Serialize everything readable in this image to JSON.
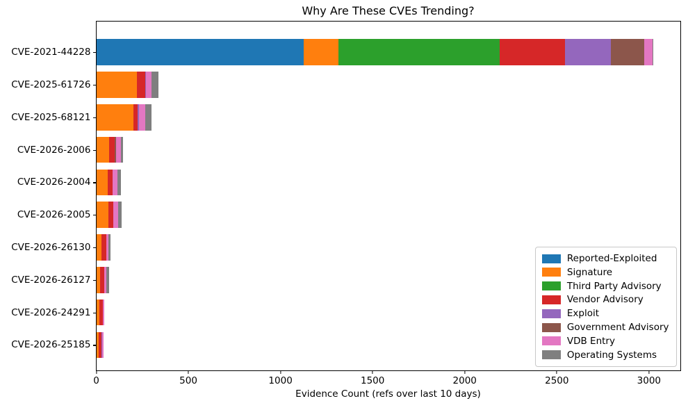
{
  "chart_data": {
    "type": "bar",
    "orientation": "horizontal",
    "title": "Why Are These CVEs Trending?",
    "xlabel": "Evidence Count (refs over last 10 days)",
    "ylabel": "",
    "xlim": [
      0,
      3176
    ],
    "xticks": [
      0,
      500,
      1000,
      1500,
      2000,
      2500,
      3000
    ],
    "grid": false,
    "legend_position": "lower right",
    "categories": [
      "CVE-2021-44228",
      "CVE-2025-61726",
      "CVE-2025-68121",
      "CVE-2026-2006",
      "CVE-2026-2004",
      "CVE-2026-2005",
      "CVE-2026-26130",
      "CVE-2026-26127",
      "CVE-2026-24291",
      "CVE-2026-25185"
    ],
    "series": [
      {
        "name": "Reported-Exploited",
        "color": "#1f77b4",
        "values": [
          1125,
          0,
          0,
          0,
          0,
          0,
          0,
          0,
          0,
          0
        ]
      },
      {
        "name": "Signature",
        "color": "#ff7f0e",
        "values": [
          190,
          220,
          200,
          70,
          63,
          65,
          30,
          20,
          17,
          14
        ]
      },
      {
        "name": "Third Party Advisory",
        "color": "#2ca02c",
        "values": [
          875,
          0,
          0,
          0,
          0,
          0,
          0,
          0,
          0,
          0
        ]
      },
      {
        "name": "Vendor Advisory",
        "color": "#d62728",
        "values": [
          355,
          45,
          25,
          30,
          27,
          29,
          26,
          23,
          18,
          15
        ]
      },
      {
        "name": "Exploit",
        "color": "#9467bd",
        "values": [
          250,
          6,
          8,
          0,
          0,
          0,
          0,
          0,
          0,
          4
        ]
      },
      {
        "name": "Government Advisory",
        "color": "#8c564b",
        "values": [
          180,
          0,
          0,
          8,
          0,
          0,
          0,
          0,
          0,
          0
        ]
      },
      {
        "name": "VDB Entry",
        "color": "#e377c2",
        "values": [
          45,
          30,
          33,
          26,
          26,
          26,
          10,
          12,
          10,
          5
        ]
      },
      {
        "name": "Operating Systems",
        "color": "#7f7f7f",
        "values": [
          5,
          35,
          34,
          12,
          19,
          16,
          13,
          15,
          0,
          0
        ]
      }
    ]
  }
}
